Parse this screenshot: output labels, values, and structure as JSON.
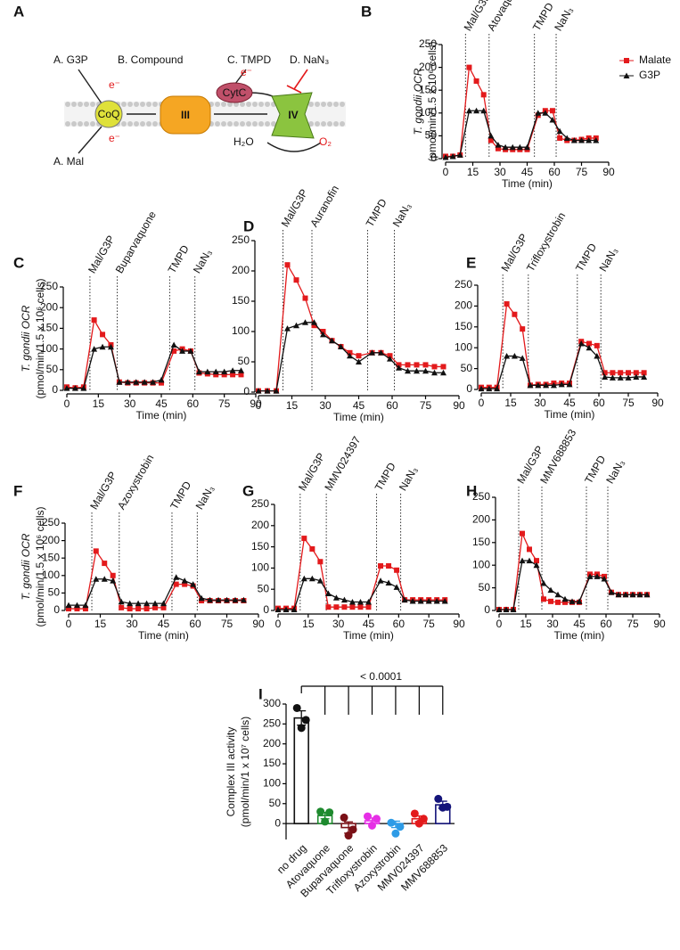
{
  "diagram": {
    "panel": "A",
    "labels": [
      "A. G3P",
      "B. Compound",
      "C. TMPD",
      "D. NaN₃",
      "A. Mal",
      "CoQ",
      "III",
      "CytC",
      "IV",
      "e⁻",
      "e⁻",
      "e⁻",
      "H₂O",
      "O₂"
    ]
  },
  "chart_data": [
    {
      "type": "line",
      "panel": "B",
      "ylabel": [
        "T. gondii OCR",
        "(pmol/min/1.5 x 10⁶ cells)"
      ],
      "xlabel": "Time (min)",
      "xlim": [
        0,
        90
      ],
      "xticks": [
        0,
        15,
        30,
        45,
        60,
        75,
        90
      ],
      "ylim": [
        0,
        250
      ],
      "yticks": [
        0,
        50,
        100,
        150,
        200,
        250
      ],
      "legend": "right",
      "injections": [
        {
          "x": 11,
          "label": "Mal/G3P"
        },
        {
          "x": 24,
          "label": "Atovaquone"
        },
        {
          "x": 49,
          "label": "TMPD"
        },
        {
          "x": 61,
          "label": "NaN₃"
        }
      ],
      "x": [
        0,
        4,
        8,
        13,
        17,
        21,
        25,
        29,
        33,
        37,
        41,
        45,
        51,
        55,
        59,
        63,
        67,
        71,
        75,
        79,
        83
      ],
      "series": [
        {
          "name": "Malate",
          "color": "#e31a1c",
          "marker": "square",
          "values": [
            5,
            5,
            8,
            200,
            170,
            140,
            40,
            22,
            20,
            20,
            20,
            20,
            95,
            105,
            105,
            45,
            40,
            40,
            42,
            45,
            45
          ]
        },
        {
          "name": "G3P",
          "color": "#111111",
          "marker": "triangle",
          "values": [
            3,
            5,
            8,
            105,
            105,
            105,
            50,
            30,
            25,
            25,
            25,
            25,
            100,
            100,
            85,
            60,
            45,
            40,
            40,
            40,
            40
          ]
        }
      ]
    },
    {
      "type": "line",
      "panel": "C",
      "ylabel": [
        "T. gondii OCR",
        "(pmol/min/1.5 x 10⁶ cells)"
      ],
      "xlabel": "Time (min)",
      "xlim": [
        0,
        90
      ],
      "xticks": [
        0,
        15,
        30,
        45,
        60,
        75,
        90
      ],
      "ylim": [
        0,
        250
      ],
      "yticks": [
        0,
        50,
        100,
        150,
        200,
        250
      ],
      "injections": [
        {
          "x": 11,
          "label": "Mal/G3P"
        },
        {
          "x": 24,
          "label": "Buparvaquone"
        },
        {
          "x": 49,
          "label": "TMPD"
        },
        {
          "x": 61,
          "label": "NaN₃"
        }
      ],
      "x": [
        0,
        4,
        8,
        13,
        17,
        21,
        25,
        29,
        33,
        37,
        41,
        45,
        51,
        55,
        59,
        63,
        67,
        71,
        75,
        79,
        83
      ],
      "series": [
        {
          "name": "Malate",
          "color": "#e31a1c",
          "marker": "square",
          "values": [
            8,
            6,
            8,
            170,
            135,
            110,
            20,
            18,
            18,
            18,
            18,
            18,
            95,
            100,
            95,
            42,
            40,
            38,
            38,
            38,
            38
          ]
        },
        {
          "name": "G3P",
          "color": "#111111",
          "marker": "triangle",
          "values": [
            5,
            5,
            5,
            100,
            105,
            105,
            20,
            20,
            20,
            20,
            20,
            25,
            110,
            95,
            95,
            45,
            45,
            45,
            45,
            48,
            48
          ]
        }
      ]
    },
    {
      "type": "line",
      "panel": "D",
      "xlabel": "Time (min)",
      "xlim": [
        0,
        90
      ],
      "xticks": [
        0,
        15,
        30,
        45,
        60,
        75,
        90
      ],
      "ylim": [
        0,
        250
      ],
      "yticks": [
        0,
        50,
        100,
        150,
        200,
        250
      ],
      "injections": [
        {
          "x": 11,
          "label": "Mal/G3P"
        },
        {
          "x": 24,
          "label": "Auranofin"
        },
        {
          "x": 49,
          "label": "TMPD"
        },
        {
          "x": 61,
          "label": "NaN₃"
        }
      ],
      "x": [
        0,
        4,
        8,
        13,
        17,
        21,
        25,
        29,
        33,
        37,
        41,
        45,
        51,
        55,
        59,
        63,
        67,
        71,
        75,
        79,
        83
      ],
      "series": [
        {
          "name": "Malate",
          "color": "#e31a1c",
          "marker": "square",
          "values": [
            2,
            2,
            2,
            210,
            185,
            155,
            110,
            100,
            85,
            75,
            65,
            60,
            65,
            65,
            60,
            45,
            45,
            45,
            45,
            42,
            42
          ]
        },
        {
          "name": "G3P",
          "color": "#111111",
          "marker": "triangle",
          "values": [
            2,
            2,
            2,
            105,
            110,
            115,
            115,
            95,
            85,
            75,
            60,
            50,
            65,
            65,
            55,
            40,
            35,
            35,
            35,
            32,
            32
          ]
        }
      ]
    },
    {
      "type": "line",
      "panel": "E",
      "xlabel": "Time (min)",
      "xlim": [
        0,
        90
      ],
      "xticks": [
        0,
        15,
        30,
        45,
        60,
        75,
        90
      ],
      "ylim": [
        0,
        250
      ],
      "yticks": [
        0,
        50,
        100,
        150,
        200,
        250
      ],
      "injections": [
        {
          "x": 11,
          "label": "Mal/G3P"
        },
        {
          "x": 24,
          "label": "Trifloxystrobin"
        },
        {
          "x": 49,
          "label": "TMPD"
        },
        {
          "x": 61,
          "label": "NaN₃"
        }
      ],
      "x": [
        0,
        4,
        8,
        13,
        17,
        21,
        25,
        29,
        33,
        37,
        41,
        45,
        51,
        55,
        59,
        63,
        67,
        71,
        75,
        79,
        83
      ],
      "series": [
        {
          "name": "Malate",
          "color": "#e31a1c",
          "marker": "square",
          "values": [
            5,
            5,
            5,
            205,
            180,
            145,
            10,
            12,
            12,
            15,
            15,
            15,
            115,
            110,
            105,
            40,
            40,
            40,
            40,
            40,
            40
          ]
        },
        {
          "name": "G3P",
          "color": "#111111",
          "marker": "triangle",
          "values": [
            2,
            2,
            2,
            80,
            80,
            75,
            10,
            10,
            10,
            10,
            12,
            12,
            110,
            100,
            80,
            30,
            28,
            28,
            28,
            30,
            30
          ]
        }
      ]
    },
    {
      "type": "line",
      "panel": "F",
      "ylabel": [
        "T. gondii OCR",
        "(pmol/min/1.5 x 10⁶ cells)"
      ],
      "xlabel": "Time (min)",
      "xlim": [
        0,
        90
      ],
      "xticks": [
        0,
        15,
        30,
        45,
        60,
        75,
        90
      ],
      "ylim": [
        0,
        250
      ],
      "yticks": [
        0,
        50,
        100,
        150,
        200,
        250
      ],
      "injections": [
        {
          "x": 11,
          "label": "Mal/G3P"
        },
        {
          "x": 24,
          "label": "Azoxystrobin"
        },
        {
          "x": 49,
          "label": "TMPD"
        },
        {
          "x": 61,
          "label": "NaN₃"
        }
      ],
      "x": [
        0,
        4,
        8,
        13,
        17,
        21,
        25,
        29,
        33,
        37,
        41,
        45,
        51,
        55,
        59,
        63,
        67,
        71,
        75,
        79,
        83
      ],
      "series": [
        {
          "name": "Malate",
          "color": "#e31a1c",
          "marker": "square",
          "values": [
            5,
            5,
            5,
            170,
            135,
            100,
            8,
            5,
            5,
            5,
            8,
            8,
            75,
            75,
            70,
            28,
            28,
            28,
            28,
            28,
            28
          ]
        },
        {
          "name": "G3P",
          "color": "#111111",
          "marker": "triangle",
          "values": [
            15,
            15,
            15,
            90,
            90,
            85,
            25,
            20,
            20,
            20,
            20,
            20,
            95,
            85,
            75,
            35,
            30,
            30,
            30,
            30,
            30
          ]
        }
      ]
    },
    {
      "type": "line",
      "panel": "G",
      "xlabel": "Time (min)",
      "xlim": [
        0,
        90
      ],
      "xticks": [
        0,
        15,
        30,
        45,
        60,
        75,
        90
      ],
      "ylim": [
        0,
        250
      ],
      "yticks": [
        0,
        50,
        100,
        150,
        200,
        250
      ],
      "injections": [
        {
          "x": 11,
          "label": "Mal/G3P"
        },
        {
          "x": 24,
          "label": "MMV024397"
        },
        {
          "x": 49,
          "label": "TMPD"
        },
        {
          "x": 61,
          "label": "NaN₃"
        }
      ],
      "x": [
        0,
        4,
        8,
        13,
        17,
        21,
        25,
        29,
        33,
        37,
        41,
        45,
        51,
        55,
        59,
        63,
        67,
        71,
        75,
        79,
        83
      ],
      "series": [
        {
          "name": "Malate",
          "color": "#e31a1c",
          "marker": "square",
          "values": [
            5,
            5,
            5,
            170,
            145,
            115,
            8,
            8,
            8,
            8,
            8,
            8,
            105,
            105,
            95,
            25,
            25,
            25,
            25,
            25,
            25
          ]
        },
        {
          "name": "G3P",
          "color": "#111111",
          "marker": "triangle",
          "values": [
            2,
            2,
            2,
            75,
            75,
            70,
            40,
            30,
            25,
            20,
            20,
            20,
            70,
            65,
            55,
            25,
            22,
            22,
            22,
            22,
            22
          ]
        }
      ]
    },
    {
      "type": "line",
      "panel": "H",
      "xlabel": "Time (min)",
      "xlim": [
        0,
        90
      ],
      "xticks": [
        0,
        15,
        30,
        45,
        60,
        75,
        90
      ],
      "ylim": [
        0,
        250
      ],
      "yticks": [
        0,
        50,
        100,
        150,
        200,
        250
      ],
      "injections": [
        {
          "x": 11,
          "label": "Mal/G3P"
        },
        {
          "x": 24,
          "label": "MMV688853"
        },
        {
          "x": 49,
          "label": "TMPD"
        },
        {
          "x": 61,
          "label": "NaN₃"
        }
      ],
      "x": [
        0,
        4,
        8,
        13,
        17,
        21,
        25,
        29,
        33,
        37,
        41,
        45,
        51,
        55,
        59,
        63,
        67,
        71,
        75,
        79,
        83
      ],
      "series": [
        {
          "name": "Malate",
          "color": "#e31a1c",
          "marker": "square",
          "values": [
            2,
            2,
            2,
            170,
            135,
            110,
            25,
            20,
            18,
            18,
            18,
            18,
            80,
            80,
            75,
            40,
            35,
            35,
            35,
            35,
            35
          ]
        },
        {
          "name": "G3P",
          "color": "#111111",
          "marker": "triangle",
          "values": [
            2,
            2,
            2,
            110,
            110,
            100,
            60,
            45,
            35,
            25,
            20,
            20,
            75,
            75,
            70,
            40,
            35,
            35,
            35,
            35,
            35
          ]
        }
      ]
    },
    {
      "type": "bar",
      "panel": "I",
      "ylabel": [
        "Complex III activity",
        "(pmol/min/1 x 10⁷ cells)"
      ],
      "annotation": "< 0.0001",
      "ylim": [
        -40,
        300
      ],
      "yticks": [
        0,
        50,
        100,
        150,
        200,
        250,
        300
      ],
      "categories": [
        "no drug",
        "Atovaquone",
        "Buparvaquone",
        "Trifloxystrobin",
        "Azoxystrobin",
        "MMV024397",
        "MMV688853"
      ],
      "colors": [
        "#111111",
        "#1e8a2e",
        "#7a1016",
        "#e62ee6",
        "#2d9be6",
        "#e31a1c",
        "#14147a"
      ],
      "values": [
        265,
        20,
        -10,
        7,
        -2,
        12,
        47
      ],
      "errors": [
        18,
        8,
        14,
        7,
        8,
        7,
        9
      ],
      "points": [
        [
          290,
          260,
          240
        ],
        [
          30,
          28,
          5
        ],
        [
          15,
          -15,
          -30
        ],
        [
          18,
          12,
          -5
        ],
        [
          2,
          -8,
          -25
        ],
        [
          25,
          12,
          0
        ],
        [
          62,
          42,
          40
        ]
      ]
    }
  ]
}
